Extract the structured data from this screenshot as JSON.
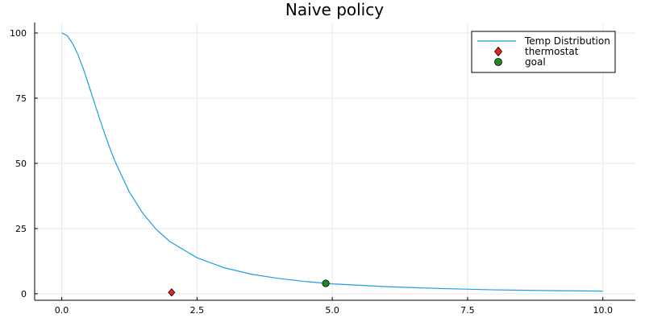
{
  "chart_data": {
    "type": "line",
    "title": "Naive policy",
    "xlabel": "",
    "ylabel": "",
    "xlim": [
      -0.5,
      10.6
    ],
    "ylim": [
      -2.5,
      104
    ],
    "xticks": [
      0.0,
      2.5,
      5.0,
      7.5,
      10.0
    ],
    "xtick_labels": [
      "0.0",
      "2.5",
      "5.0",
      "7.5",
      "10.0"
    ],
    "yticks": [
      0,
      25,
      50,
      75,
      100
    ],
    "ytick_labels": [
      "0",
      "25",
      "50",
      "75",
      "100"
    ],
    "grid": true,
    "legend_position": "top-right",
    "series": [
      {
        "name": "Temp Distribution",
        "kind": "line",
        "color": "#1f9ee8",
        "x": [
          0.0,
          0.1,
          0.2,
          0.3,
          0.4,
          0.5,
          0.6,
          0.7,
          0.8,
          0.9,
          1.0,
          1.25,
          1.5,
          1.75,
          2.0,
          2.5,
          3.0,
          3.5,
          4.0,
          4.5,
          5.0,
          6.0,
          7.0,
          8.0,
          9.0,
          10.0
        ],
        "y": [
          100.0,
          99.0,
          96.0,
          91.7,
          86.2,
          80.0,
          73.5,
          67.1,
          61.0,
          55.2,
          50.0,
          39.0,
          30.8,
          24.6,
          20.0,
          13.8,
          10.0,
          7.5,
          5.9,
          4.7,
          3.8,
          2.7,
          2.0,
          1.5,
          1.2,
          1.0
        ]
      },
      {
        "name": "thermostat",
        "kind": "scatter",
        "marker": "diamond",
        "color": "#e8231b",
        "x": [
          2.03
        ],
        "y": [
          0.5
        ]
      },
      {
        "name": "goal",
        "kind": "scatter",
        "marker": "circle",
        "color": "#1e8a1e",
        "x": [
          4.88
        ],
        "y": [
          4.0
        ]
      }
    ]
  }
}
